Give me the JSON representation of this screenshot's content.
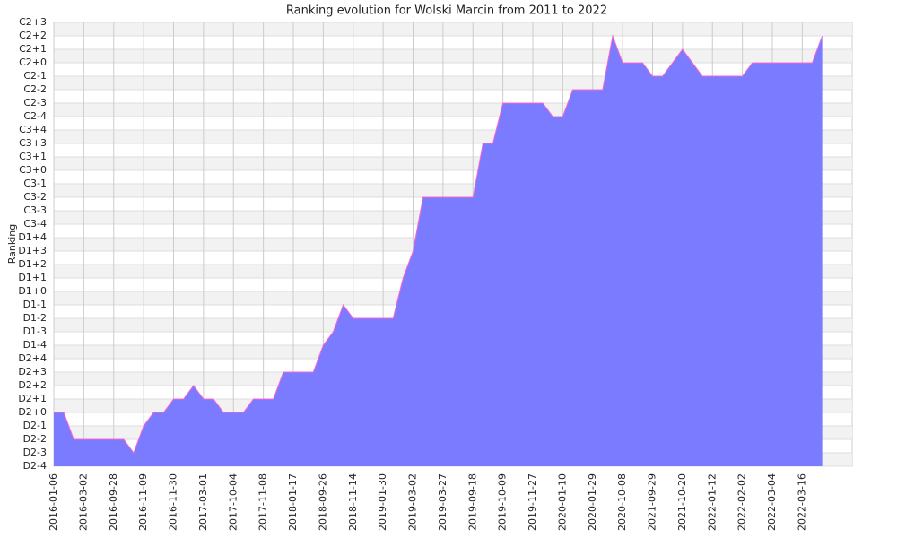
{
  "chart_data": {
    "type": "area",
    "title": "Ranking evolution for Wolski Marcin from 2011 to 2022",
    "y_label": "Ranking",
    "color": "#7b7bff",
    "line_color": "#ff66cc",
    "grid": true,
    "categories": [
      "2016-01-06",
      null,
      null,
      "2016-03-02",
      null,
      null,
      "2016-09-28",
      null,
      null,
      "2016-11-09",
      null,
      null,
      "2016-11-30",
      null,
      null,
      "2017-03-01",
      null,
      null,
      "2017-10-04",
      null,
      null,
      "2017-11-08",
      null,
      null,
      "2018-01-17",
      null,
      null,
      "2018-09-26",
      null,
      null,
      "2018-11-14",
      null,
      null,
      "2019-01-30",
      null,
      null,
      "2019-03-02",
      null,
      null,
      "2019-03-27",
      null,
      null,
      "2019-09-18",
      null,
      null,
      "2019-10-09",
      null,
      null,
      "2019-11-27",
      null,
      null,
      "2020-01-10",
      null,
      null,
      "2020-01-29",
      null,
      null,
      "2020-10-08",
      null,
      null,
      "2021-09-29",
      null,
      null,
      "2021-10-20",
      null,
      null,
      "2022-01-12",
      null,
      null,
      "2022-02-02",
      null,
      null,
      "2022-03-04",
      null,
      null,
      "2022-03-16",
      null,
      null
    ],
    "values": [
      4,
      4,
      2,
      2,
      2,
      2,
      2,
      2,
      1,
      3,
      4,
      4,
      5,
      5,
      6,
      5,
      5,
      4,
      4,
      4,
      5,
      5,
      5,
      7,
      7,
      7,
      7,
      9,
      10,
      12,
      11,
      11,
      11,
      11,
      11,
      14,
      16,
      20,
      20,
      20,
      20,
      20,
      20,
      24,
      24,
      27,
      27,
      27,
      27,
      27,
      26,
      26,
      28,
      28,
      28,
      28,
      32,
      30,
      30,
      30,
      29,
      29,
      30,
      31,
      30,
      29,
      29,
      29,
      29,
      29,
      30,
      30,
      30,
      30,
      30,
      30,
      30,
      32
    ],
    "ylim": [
      0,
      33
    ],
    "yticks": [
      {
        "value": 0,
        "label": "D2-4"
      },
      {
        "value": 1,
        "label": "D2-3"
      },
      {
        "value": 2,
        "label": "D2-2"
      },
      {
        "value": 3,
        "label": "D2-1"
      },
      {
        "value": 4,
        "label": "D2+0"
      },
      {
        "value": 5,
        "label": "D2+1"
      },
      {
        "value": 6,
        "label": "D2+2"
      },
      {
        "value": 7,
        "label": "D2+3"
      },
      {
        "value": 8,
        "label": "D2+4"
      },
      {
        "value": 9,
        "label": "D1-4"
      },
      {
        "value": 10,
        "label": "D1-3"
      },
      {
        "value": 11,
        "label": "D1-2"
      },
      {
        "value": 12,
        "label": "D1-1"
      },
      {
        "value": 13,
        "label": "D1+0"
      },
      {
        "value": 14,
        "label": "D1+1"
      },
      {
        "value": 15,
        "label": "D1+2"
      },
      {
        "value": 16,
        "label": "D1+3"
      },
      {
        "value": 17,
        "label": "D1+4"
      },
      {
        "value": 18,
        "label": "C3-4"
      },
      {
        "value": 19,
        "label": "C3-3"
      },
      {
        "value": 20,
        "label": "C3-2"
      },
      {
        "value": 21,
        "label": "C3-1"
      },
      {
        "value": 22,
        "label": "C3+0"
      },
      {
        "value": 23,
        "label": "C3+1"
      },
      {
        "value": 24,
        "label": "C3+3"
      },
      {
        "value": 25,
        "label": "C3+4"
      },
      {
        "value": 26,
        "label": "C2-4"
      },
      {
        "value": 27,
        "label": "C2-3"
      },
      {
        "value": 28,
        "label": "C2-2"
      },
      {
        "value": 29,
        "label": "C2-1"
      },
      {
        "value": 30,
        "label": "C2+0"
      },
      {
        "value": 31,
        "label": "C2+1"
      },
      {
        "value": 32,
        "label": "C2+2"
      },
      {
        "value": 33,
        "label": "C2+3"
      }
    ]
  }
}
